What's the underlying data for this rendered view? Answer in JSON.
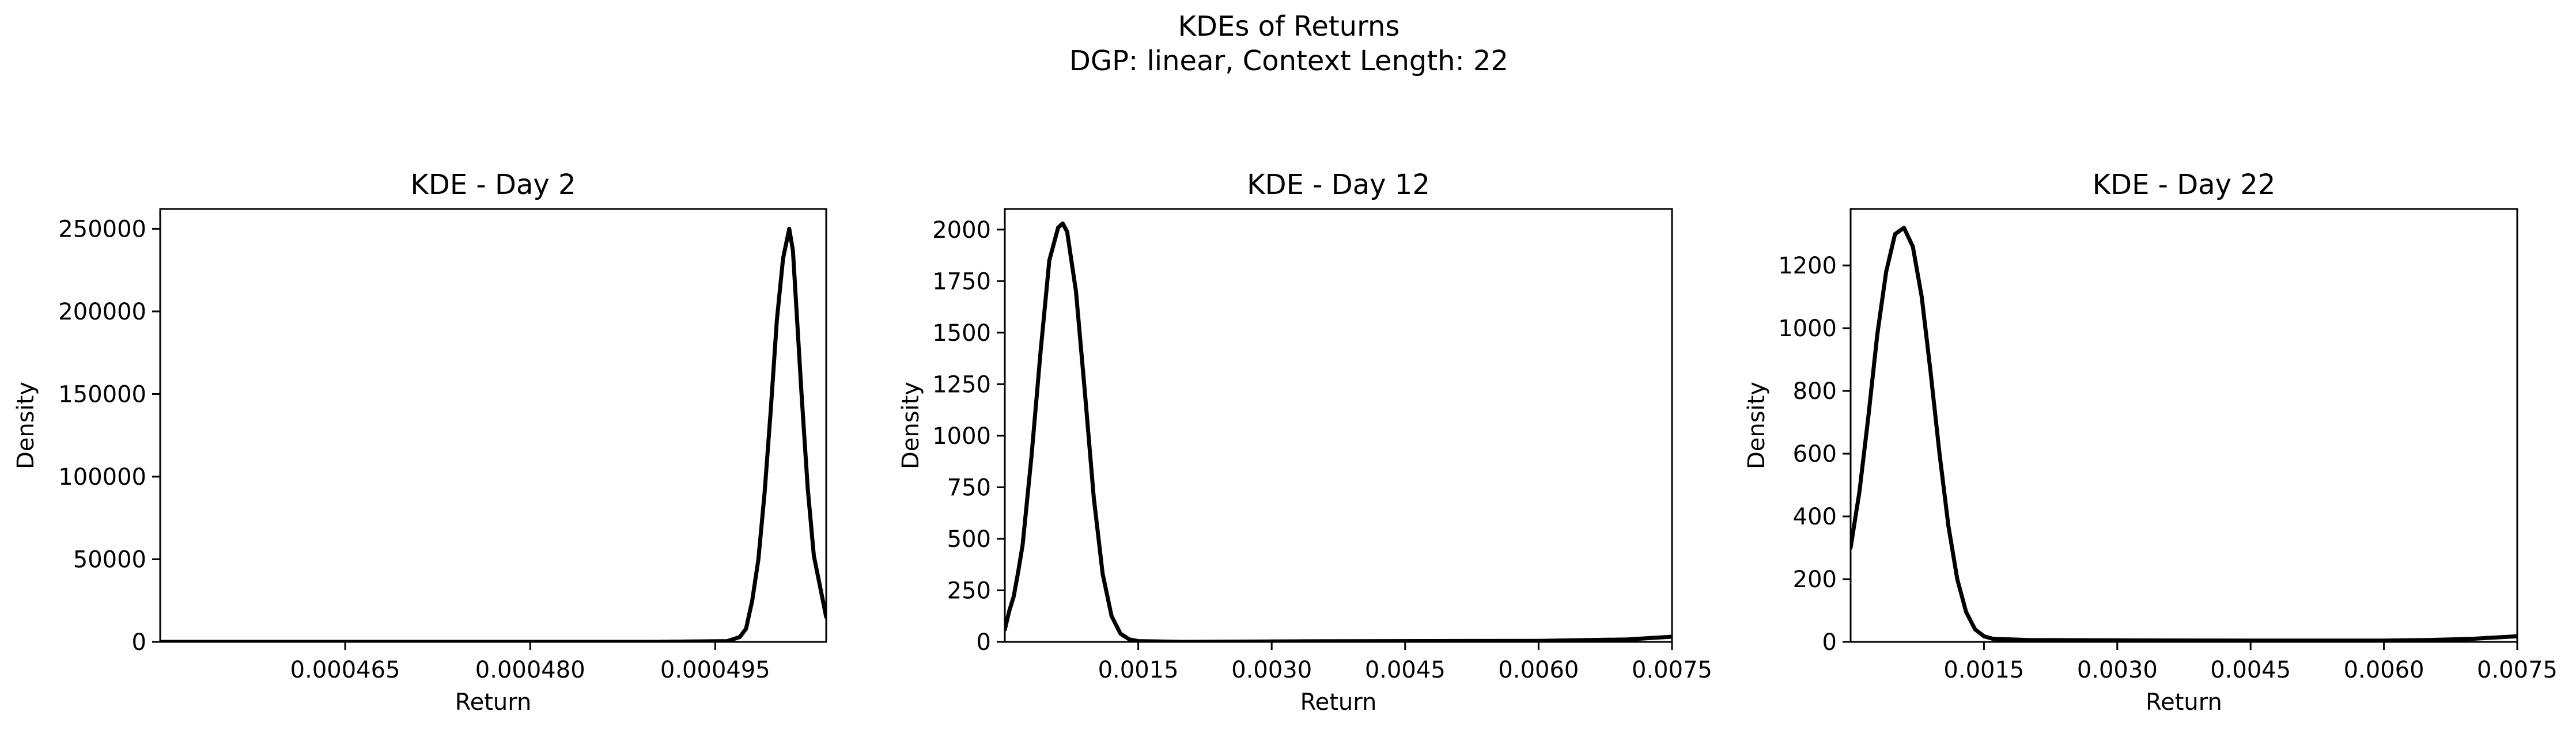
{
  "figure": {
    "title_line1": "KDEs of Returns",
    "title_line2": "DGP: linear, Context Length: 22"
  },
  "chart_data": [
    {
      "type": "line",
      "title": "KDE - Day 2",
      "xlabel": "Return",
      "ylabel": "Density",
      "xlim": [
        0.00045,
        0.000504
      ],
      "ylim": [
        0,
        262000
      ],
      "xticks": [
        0.000465,
        0.00048,
        0.000495
      ],
      "xtick_labels": [
        "0.000465",
        "0.000480",
        "0.000495"
      ],
      "yticks": [
        0,
        50000,
        100000,
        150000,
        200000,
        250000
      ],
      "ytick_labels": [
        "0",
        "50000",
        "100000",
        "150000",
        "200000",
        "250000"
      ],
      "series": [
        {
          "color": "#000000",
          "x": [
            0.00045,
            0.00047,
            0.00049,
            0.000496,
            0.000497,
            0.0004975,
            0.000498,
            0.0004985,
            0.000499,
            0.0004995,
            0.0005,
            0.0005005,
            0.000501,
            0.0005013,
            0.0005016,
            0.000502,
            0.0005025,
            0.000503,
            0.000504
          ],
          "y": [
            0,
            0,
            0,
            500,
            3000,
            8000,
            25000,
            50000,
            90000,
            140000,
            195000,
            232000,
            250000,
            237000,
            200000,
            150000,
            93000,
            52000,
            15000
          ]
        }
      ]
    },
    {
      "type": "line",
      "title": "KDE - Day 12",
      "xlabel": "Return",
      "ylabel": "Density",
      "xlim": [
        0.0,
        0.0075
      ],
      "ylim": [
        0,
        2100
      ],
      "xticks": [
        0.0015,
        0.003,
        0.0045,
        0.006,
        0.0075
      ],
      "xtick_labels": [
        "0.0015",
        "0.0030",
        "0.0045",
        "0.0060",
        "0.0075"
      ],
      "yticks": [
        0,
        250,
        500,
        750,
        1000,
        1250,
        1500,
        1750,
        2000
      ],
      "ytick_labels": [
        "0",
        "250",
        "500",
        "750",
        "1000",
        "1250",
        "1500",
        "1750",
        "2000"
      ],
      "series": [
        {
          "color": "#000000",
          "x": [
            0.0,
            5e-05,
            0.0001,
            0.00015,
            0.0002,
            0.0003,
            0.0004,
            0.0005,
            0.0006,
            0.00065,
            0.0007,
            0.0008,
            0.0009,
            0.001,
            0.0011,
            0.0012,
            0.0013,
            0.0014,
            0.0015,
            0.002,
            0.0035,
            0.006,
            0.007,
            0.0075
          ],
          "y": [
            60,
            150,
            220,
            340,
            470,
            900,
            1400,
            1850,
            2010,
            2030,
            1990,
            1700,
            1210,
            700,
            330,
            125,
            40,
            12,
            4,
            0,
            3,
            5,
            12,
            25
          ]
        }
      ]
    },
    {
      "type": "line",
      "title": "KDE - Day 22",
      "xlabel": "Return",
      "ylabel": "Density",
      "xlim": [
        0.0,
        0.0075
      ],
      "ylim": [
        0,
        1380
      ],
      "xticks": [
        0.0015,
        0.003,
        0.0045,
        0.006,
        0.0075
      ],
      "xtick_labels": [
        "0.0015",
        "0.0030",
        "0.0045",
        "0.0060",
        "0.0075"
      ],
      "yticks": [
        0,
        200,
        400,
        600,
        800,
        1000,
        1200
      ],
      "ytick_labels": [
        "0",
        "200",
        "400",
        "600",
        "800",
        "1000",
        "1200"
      ],
      "series": [
        {
          "color": "#000000",
          "x": [
            0.0,
            0.0001,
            0.0002,
            0.0003,
            0.0004,
            0.0005,
            0.0006,
            0.0007,
            0.0008,
            0.0009,
            0.001,
            0.0011,
            0.0012,
            0.0013,
            0.0014,
            0.0015,
            0.0016,
            0.002,
            0.003,
            0.0045,
            0.006,
            0.0065,
            0.007,
            0.0075
          ],
          "y": [
            300,
            480,
            720,
            980,
            1180,
            1300,
            1320,
            1260,
            1100,
            860,
            600,
            370,
            200,
            95,
            40,
            18,
            10,
            6,
            5,
            4,
            4,
            6,
            10,
            18
          ]
        }
      ]
    }
  ]
}
